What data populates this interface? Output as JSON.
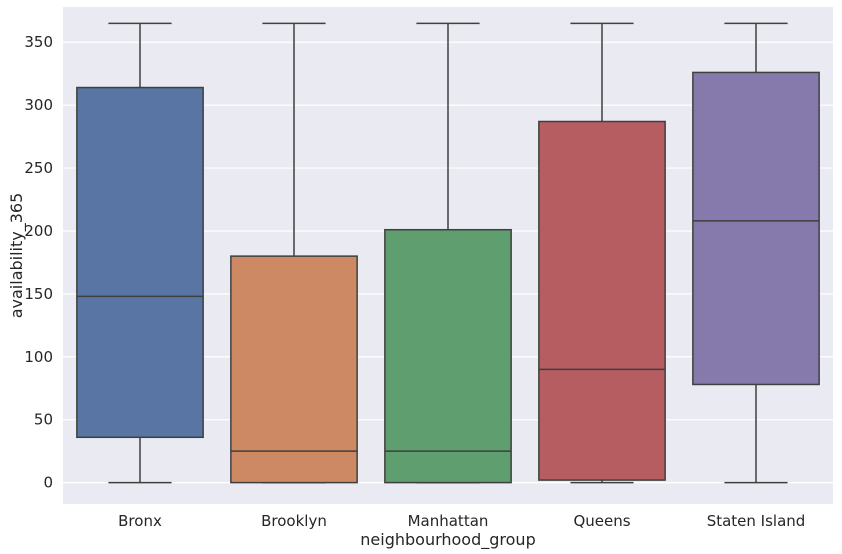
{
  "chart_data": {
    "type": "box",
    "title": "",
    "xlabel": "neighbourhood_group",
    "ylabel": "availability_365",
    "ylim": [
      -17,
      378
    ],
    "yticks": [
      0,
      50,
      100,
      150,
      200,
      250,
      300,
      350
    ],
    "grid": true,
    "background": "#eaeaf2",
    "line_color": "#3f3f3f",
    "categories": [
      "Bronx",
      "Brooklyn",
      "Manhattan",
      "Queens",
      "Staten Island"
    ],
    "series": [
      {
        "category": "Bronx",
        "min": 0,
        "q1": 36,
        "median": 148,
        "q3": 314,
        "max": 365,
        "color": "#5875a4"
      },
      {
        "category": "Brooklyn",
        "min": 0,
        "q1": 0,
        "median": 25,
        "q3": 180,
        "max": 365,
        "color": "#cc8963"
      },
      {
        "category": "Manhattan",
        "min": 0,
        "q1": 0,
        "median": 25,
        "q3": 201,
        "max": 365,
        "color": "#5f9e6e"
      },
      {
        "category": "Queens",
        "min": 0,
        "q1": 2,
        "median": 90,
        "q3": 287,
        "max": 365,
        "color": "#b55d60"
      },
      {
        "category": "Staten Island",
        "min": 0,
        "q1": 78,
        "median": 208,
        "q3": 326,
        "max": 365,
        "color": "#857aab"
      }
    ]
  }
}
